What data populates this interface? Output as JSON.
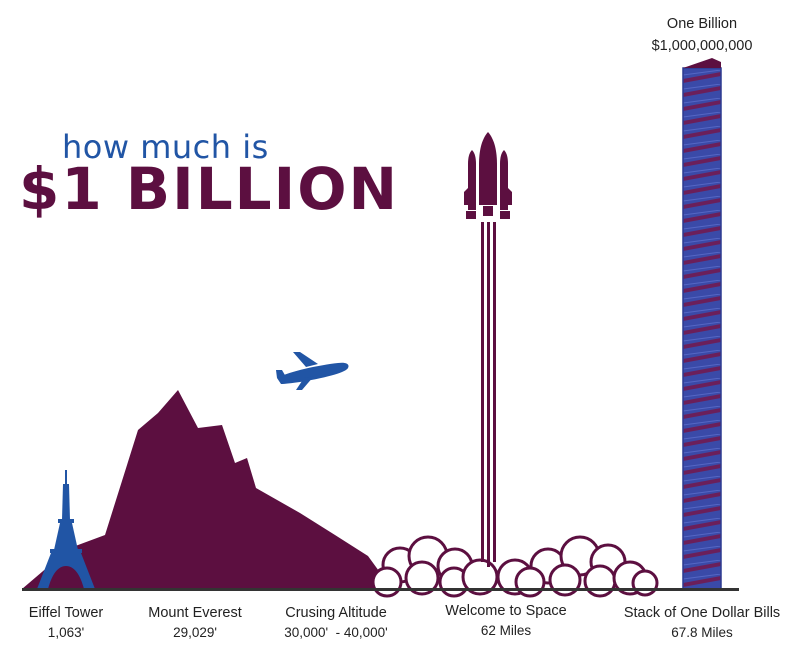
{
  "title": {
    "line1": "how much is",
    "line2": "$1 BILLION"
  },
  "top_label": {
    "name": "One Billion",
    "value": "$1,000,000,000"
  },
  "items": [
    {
      "name": "Eiffel Tower",
      "value": "1,063'"
    },
    {
      "name": "Mount Everest",
      "value": "29,029'"
    },
    {
      "name": "Crusing Altitude",
      "value": "30,000'  - 40,000'"
    },
    {
      "name": "Welcome to Space",
      "value": "62 Miles"
    },
    {
      "name": "Stack of One Dollar Bills",
      "value": "67.8 Miles"
    }
  ],
  "icons": [
    "eiffel-tower-icon",
    "mountain-icon",
    "airplane-icon",
    "space-shuttle-icon",
    "cloud-icon",
    "dollar-stack-icon"
  ],
  "colors": {
    "plum": "#5c0f40",
    "blue": "#2155a5",
    "stack_blue": "#3a4aa8",
    "stack_purple": "#6b1f5a",
    "ground": "#333333"
  }
}
